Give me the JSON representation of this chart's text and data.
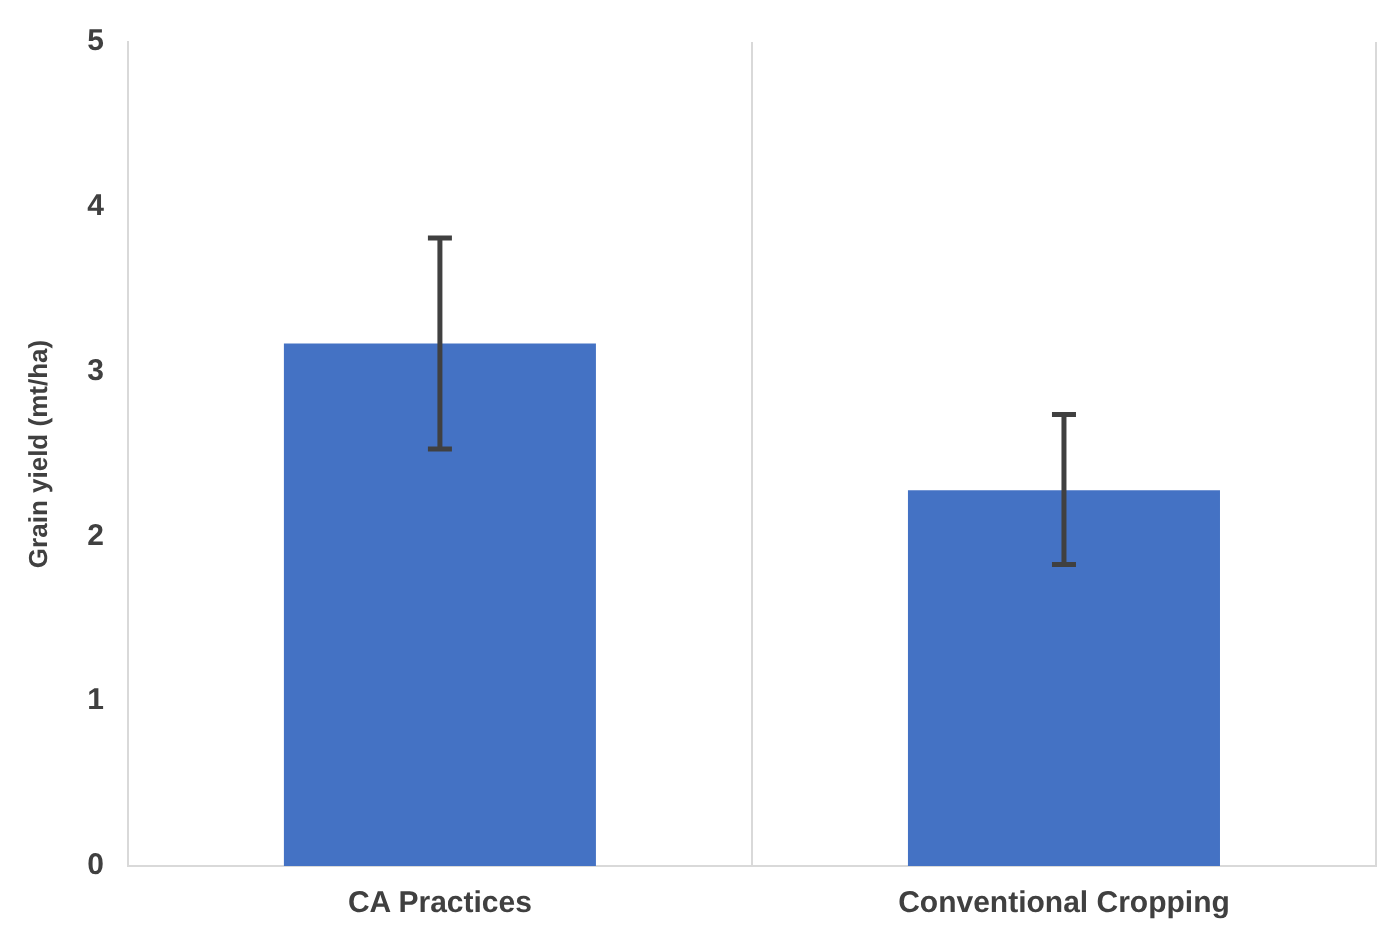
{
  "chart_data": {
    "type": "bar",
    "ylabel": "Grain yield (mt/ha)",
    "categories": [
      "CA Practices",
      "Conventional Cropping"
    ],
    "values": [
      3.17,
      2.28
    ],
    "errors": [
      [
        2.53,
        3.81
      ],
      [
        1.83,
        2.74
      ]
    ],
    "color": "#4472c4",
    "ylim": [
      0,
      5
    ],
    "yticks": [
      0,
      1,
      2,
      3,
      4,
      5
    ],
    "grid": "x",
    "legend": false
  }
}
